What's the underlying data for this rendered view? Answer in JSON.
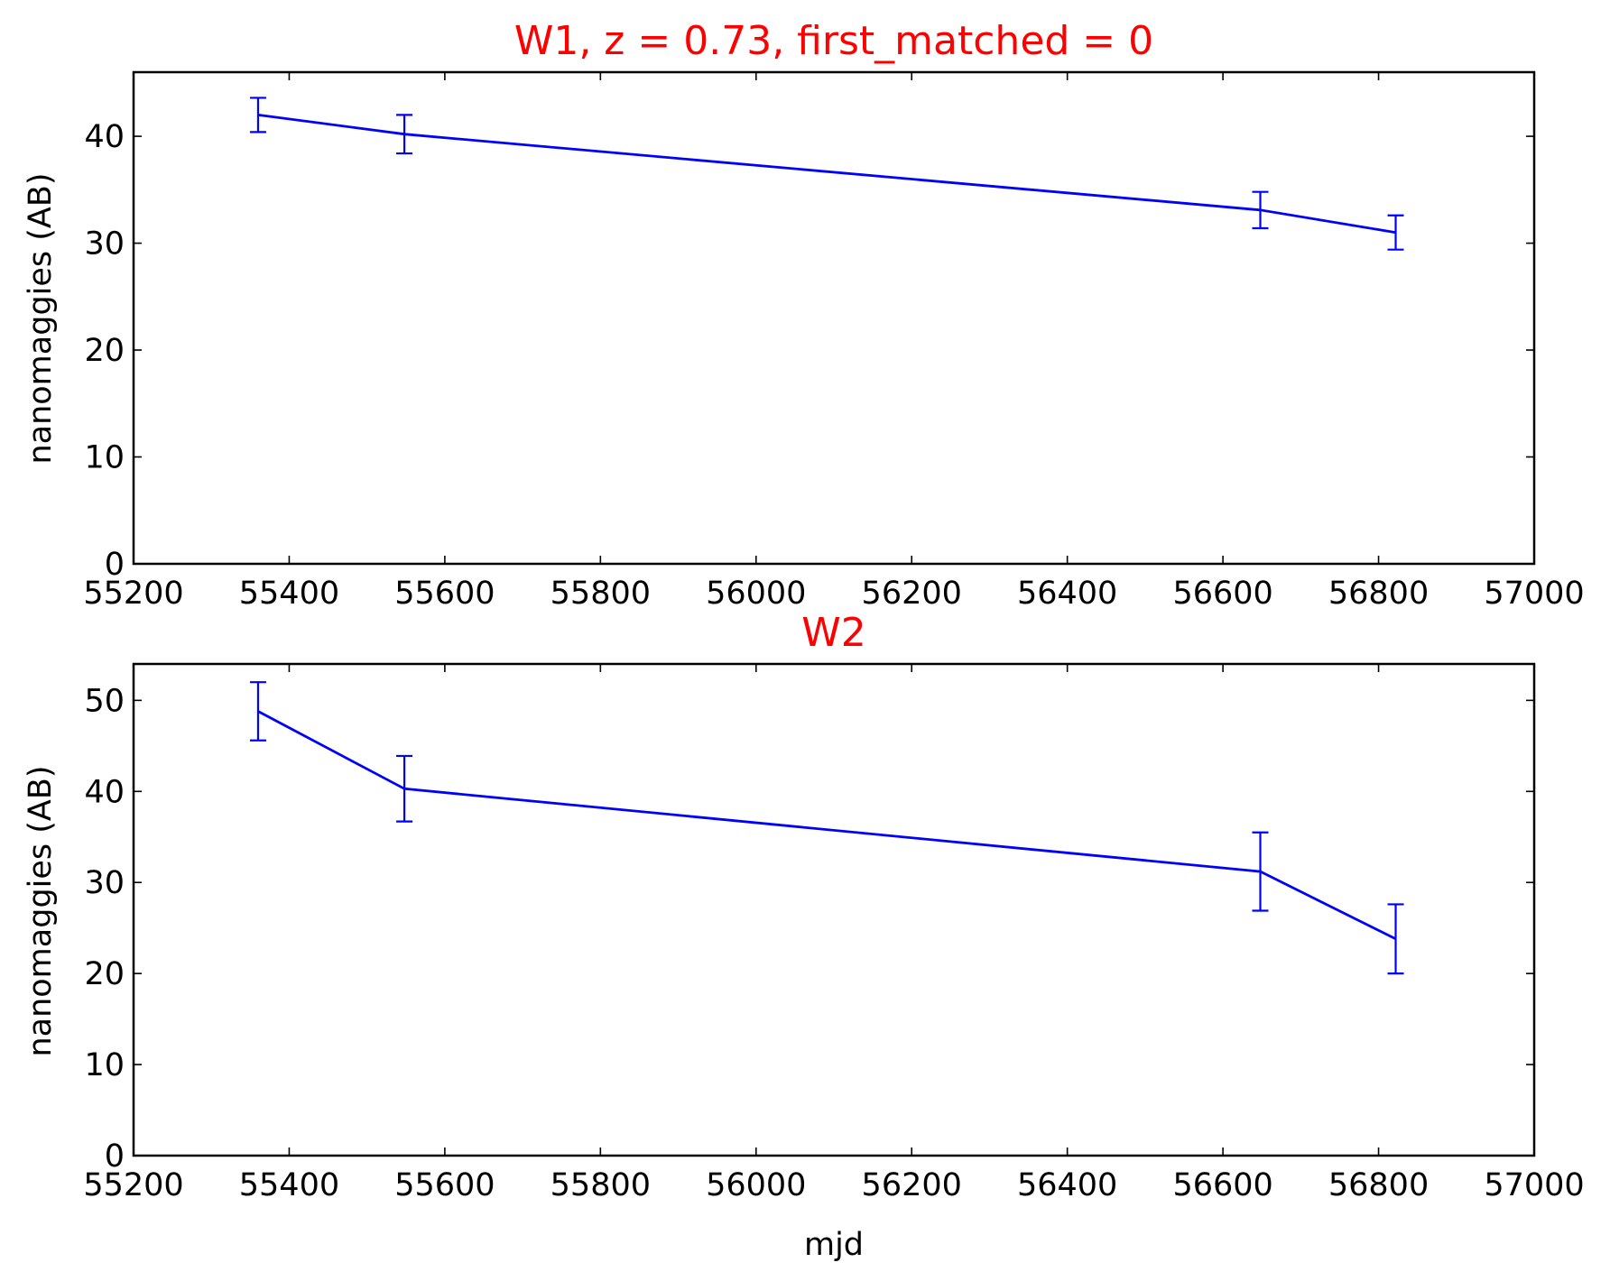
{
  "chart_data": [
    {
      "type": "line",
      "title": "W1, z = 0.73, first_matched = 0",
      "xlabel": "",
      "ylabel": "nanomaggies (AB)",
      "xlim": [
        55200,
        57000
      ],
      "ylim": [
        0,
        46
      ],
      "xticks": [
        55200,
        55400,
        55600,
        55800,
        56000,
        56200,
        56400,
        56600,
        56800,
        57000
      ],
      "yticks": [
        0,
        10,
        20,
        30,
        40
      ],
      "grid": false,
      "series": [
        {
          "color": "#0000ff",
          "x": [
            55360,
            55548,
            56648,
            56822
          ],
          "y": [
            42.0,
            40.2,
            33.1,
            31.0
          ],
          "yerr": [
            1.6,
            1.8,
            1.7,
            1.6
          ]
        }
      ]
    },
    {
      "type": "line",
      "title": "W2",
      "xlabel": "mjd",
      "ylabel": "nanomaggies (AB)",
      "xlim": [
        55200,
        57000
      ],
      "ylim": [
        0,
        54
      ],
      "xticks": [
        55200,
        55400,
        55600,
        55800,
        56000,
        56200,
        56400,
        56600,
        56800,
        57000
      ],
      "yticks": [
        0,
        10,
        20,
        30,
        40,
        50
      ],
      "grid": false,
      "series": [
        {
          "color": "#0000ff",
          "x": [
            55360,
            55548,
            56648,
            56822
          ],
          "y": [
            48.8,
            40.3,
            31.2,
            23.8
          ],
          "yerr": [
            3.2,
            3.6,
            4.3,
            3.8
          ]
        }
      ]
    }
  ]
}
